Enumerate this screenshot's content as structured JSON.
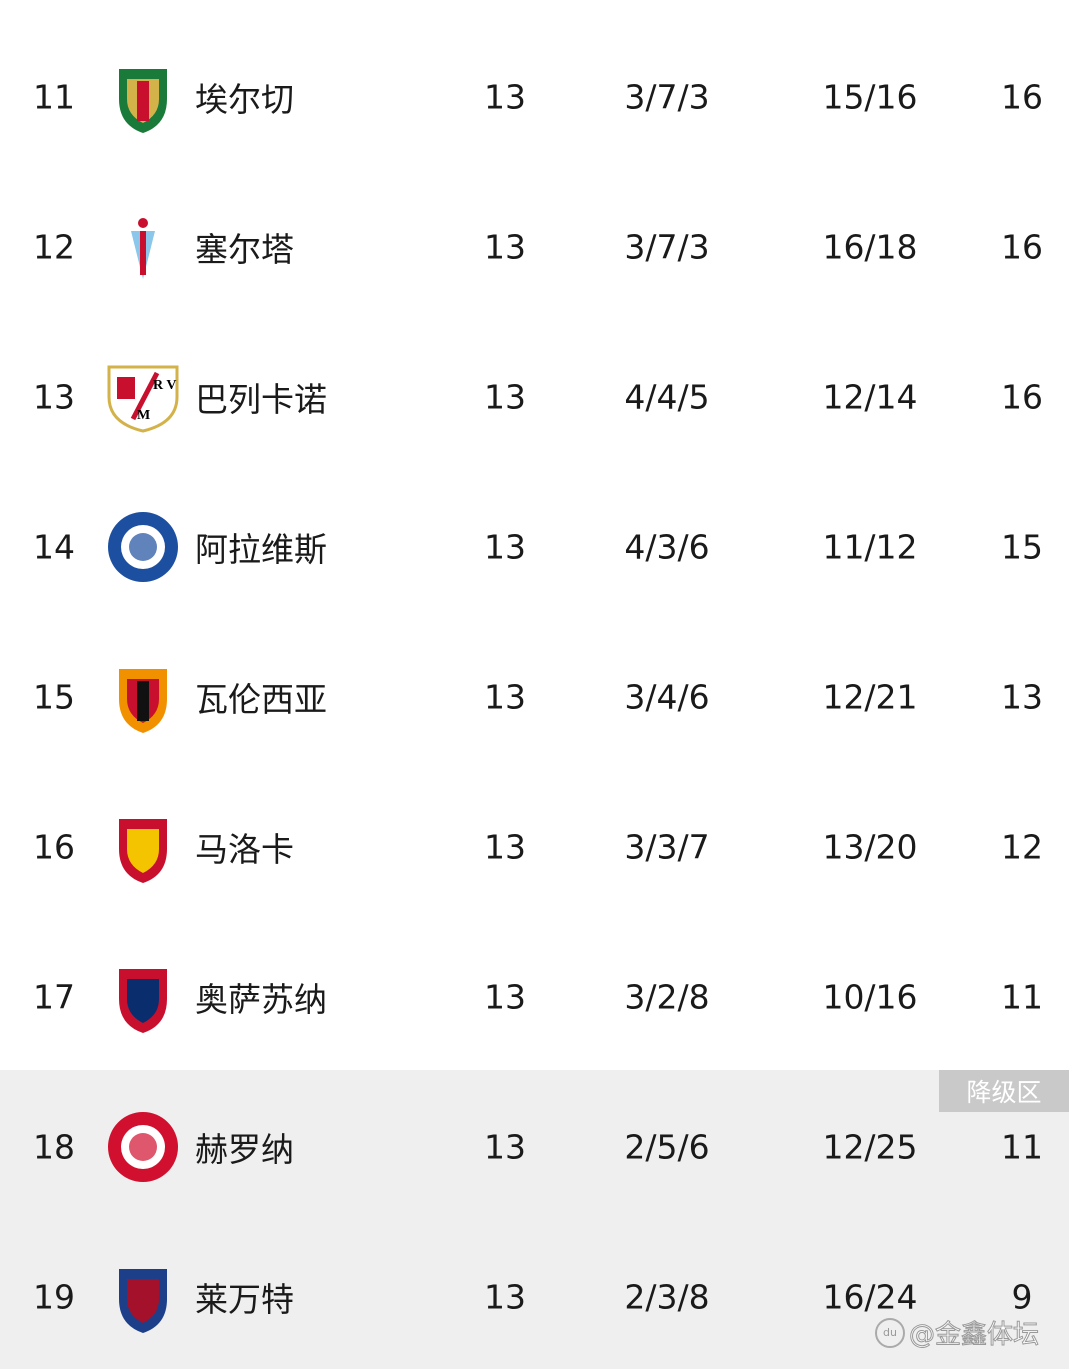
{
  "zone_label": "降级区",
  "watermark": "@金鑫体坛",
  "rows": [
    {
      "rank": "11",
      "team": "埃尔切",
      "played": "13",
      "wdl": "3/7/3",
      "goals": "15/16",
      "points": "16",
      "logo": "elche-crest",
      "colors": [
        "#1a7a3a",
        "#d4b24a",
        "#c8102e"
      ]
    },
    {
      "rank": "12",
      "team": "塞尔塔",
      "played": "13",
      "wdl": "3/7/3",
      "goals": "16/18",
      "points": "16",
      "logo": "celta-crest",
      "colors": [
        "#8ac7ea",
        "#c8102e"
      ]
    },
    {
      "rank": "13",
      "team": "巴列卡诺",
      "played": "13",
      "wdl": "4/4/5",
      "goals": "12/14",
      "points": "16",
      "logo": "rayo-crest",
      "colors": [
        "#c8102e",
        "#d4b24a"
      ]
    },
    {
      "rank": "14",
      "team": "阿拉维斯",
      "played": "13",
      "wdl": "4/3/6",
      "goals": "11/12",
      "points": "15",
      "logo": "alaves-crest",
      "colors": [
        "#1d4fa0",
        "#ffffff"
      ]
    },
    {
      "rank": "15",
      "team": "瓦伦西亚",
      "played": "13",
      "wdl": "3/4/6",
      "goals": "12/21",
      "points": "13",
      "logo": "valencia-crest",
      "colors": [
        "#f29100",
        "#c8102e",
        "#111111"
      ]
    },
    {
      "rank": "16",
      "team": "马洛卡",
      "played": "13",
      "wdl": "3/3/7",
      "goals": "13/20",
      "points": "12",
      "logo": "mallorca-crest",
      "colors": [
        "#c8102e",
        "#f5c400"
      ]
    },
    {
      "rank": "17",
      "team": "奥萨苏纳",
      "played": "13",
      "wdl": "3/2/8",
      "goals": "10/16",
      "points": "11",
      "logo": "osasuna-crest",
      "colors": [
        "#c8102e",
        "#0a2d6e"
      ]
    },
    {
      "rank": "18",
      "team": "赫罗纳",
      "played": "13",
      "wdl": "2/5/6",
      "goals": "12/25",
      "points": "11",
      "logo": "girona-crest",
      "colors": [
        "#d0102e",
        "#ffffff"
      ]
    },
    {
      "rank": "19",
      "team": "莱万特",
      "played": "13",
      "wdl": "2/3/8",
      "goals": "16/24",
      "points": "9",
      "logo": "levante-crest",
      "colors": [
        "#1d3f8a",
        "#a3122a"
      ]
    }
  ]
}
